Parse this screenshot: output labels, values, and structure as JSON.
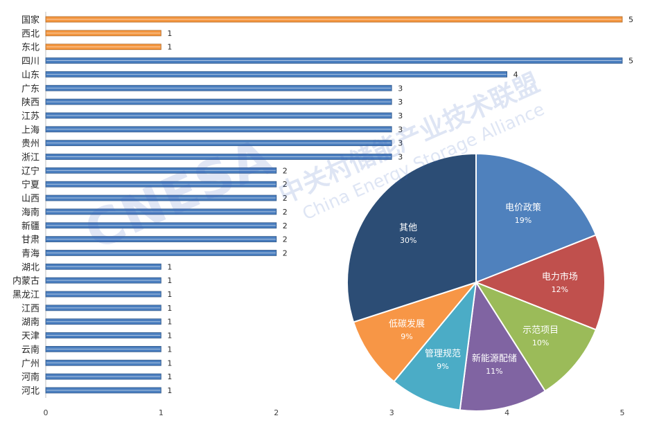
{
  "chart_data": [
    {
      "type": "bar",
      "orientation": "horizontal",
      "categories": [
        "国家",
        "西北",
        "东北",
        "四川",
        "山东",
        "广东",
        "陕西",
        "江苏",
        "上海",
        "贵州",
        "浙江",
        "辽宁",
        "宁夏",
        "山西",
        "海南",
        "新疆",
        "甘肃",
        "青海",
        "湖北",
        "内蒙古",
        "黑龙江",
        "江西",
        "湖南",
        "天津",
        "云南",
        "广州",
        "河南",
        "河北"
      ],
      "values": [
        5,
        1,
        1,
        5,
        4,
        3,
        3,
        3,
        3,
        3,
        3,
        2,
        2,
        2,
        2,
        2,
        2,
        2,
        1,
        1,
        1,
        1,
        1,
        1,
        1,
        1,
        1,
        1
      ],
      "bar_colors_by_group": {
        "national_regional": "#f4963f",
        "provincial": "#4a7ebf"
      },
      "group_of_category": [
        "national_regional",
        "national_regional",
        "national_regional",
        "provincial",
        "provincial",
        "provincial",
        "provincial",
        "provincial",
        "provincial",
        "provincial",
        "provincial",
        "provincial",
        "provincial",
        "provincial",
        "provincial",
        "provincial",
        "provincial",
        "provincial",
        "provincial",
        "provincial",
        "provincial",
        "provincial",
        "provincial",
        "provincial",
        "provincial",
        "provincial",
        "provincial",
        "provincial"
      ],
      "xlim": [
        0,
        5
      ],
      "xticks": [
        "0",
        "1",
        "2",
        "3",
        "4",
        "5"
      ],
      "data_labels": true,
      "grid": false,
      "title": ""
    },
    {
      "type": "pie",
      "slices": [
        {
          "label": "电价政策",
          "pct_text": "19%",
          "value": 19,
          "color": "#4f81bd"
        },
        {
          "label": "电力市场",
          "pct_text": "12%",
          "value": 12,
          "color": "#c0504d"
        },
        {
          "label": "示范项目",
          "pct_text": "10%",
          "value": 10,
          "color": "#9bbb59"
        },
        {
          "label": "新能源配储",
          "pct_text": "11%",
          "value": 11,
          "color": "#8064a2"
        },
        {
          "label": "管理规范",
          "pct_text": "9%",
          "value": 9,
          "color": "#4bacc6"
        },
        {
          "label": "低碳发展",
          "pct_text": "9%",
          "value": 9,
          "color": "#f79646"
        },
        {
          "label": "其他",
          "pct_text": "30%",
          "value": 30,
          "color": "#2c4d75"
        }
      ],
      "title": ""
    }
  ],
  "watermark": {
    "logo_text": "CNESA",
    "cn_text": "中关村储能产业技术联盟",
    "en_text": "China Energy Storage Alliance"
  }
}
